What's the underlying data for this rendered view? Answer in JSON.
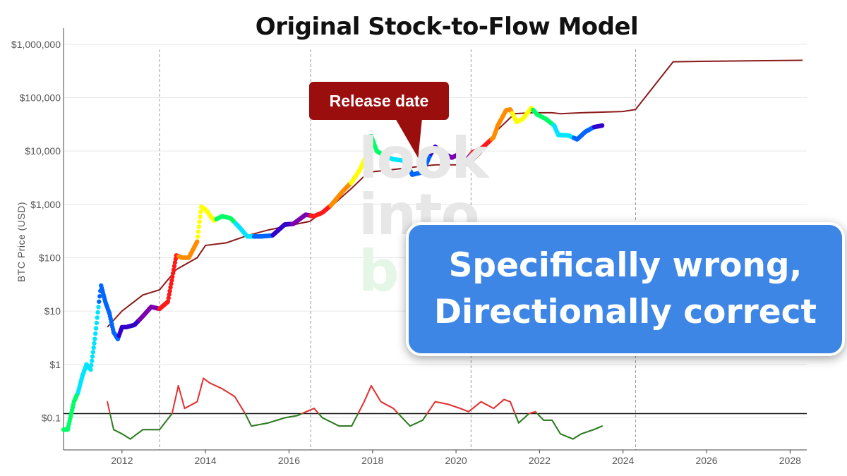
{
  "chart_data": {
    "type": "line",
    "title": "Original Stock-to-Flow Model",
    "ylabel": "BTC Price (USD)",
    "xlabel": "",
    "y_scale": "log",
    "x_ticks": [
      "2012",
      "2014",
      "2016",
      "2018",
      "2020",
      "2022",
      "2024",
      "2026",
      "2028"
    ],
    "y_ticks": [
      "$0.1",
      "$1",
      "$10",
      "$100",
      "$1,000",
      "$10,000",
      "$100,000",
      "$1,000,000"
    ],
    "xlim": [
      2010.6,
      2028.4
    ],
    "ylim": [
      0.025,
      2000000
    ],
    "grid": true,
    "halving_dates": [
      2012.9,
      2016.52,
      2020.36,
      2024.3
    ],
    "reference_line": {
      "value": 0.12
    },
    "series": [
      {
        "role": "price",
        "color_scale": [
          "#ff1a1a",
          "#ff8c00",
          "#ffff00",
          "#00ff66",
          "#00e5ff",
          "#0066ff",
          "#3300cc",
          "#7a00b0"
        ],
        "points": [
          [
            2010.6,
            0.06
          ],
          [
            2010.7,
            0.06
          ],
          [
            2010.85,
            0.2
          ],
          [
            2010.95,
            0.3
          ],
          [
            2011.05,
            0.6
          ],
          [
            2011.15,
            1
          ],
          [
            2011.25,
            0.8
          ],
          [
            2011.35,
            3
          ],
          [
            2011.45,
            15
          ],
          [
            2011.5,
            30
          ],
          [
            2011.6,
            15
          ],
          [
            2011.7,
            9
          ],
          [
            2011.8,
            4
          ],
          [
            2011.9,
            3
          ],
          [
            2012.0,
            5
          ],
          [
            2012.1,
            5
          ],
          [
            2012.3,
            5.5
          ],
          [
            2012.5,
            8
          ],
          [
            2012.7,
            12
          ],
          [
            2012.9,
            11
          ],
          [
            2013.1,
            15
          ],
          [
            2013.3,
            110
          ],
          [
            2013.45,
            100
          ],
          [
            2013.6,
            100
          ],
          [
            2013.8,
            200
          ],
          [
            2013.9,
            900
          ],
          [
            2014.0,
            800
          ],
          [
            2014.2,
            500
          ],
          [
            2014.4,
            600
          ],
          [
            2014.6,
            550
          ],
          [
            2014.8,
            380
          ],
          [
            2015.0,
            250
          ],
          [
            2015.3,
            250
          ],
          [
            2015.6,
            260
          ],
          [
            2015.9,
            420
          ],
          [
            2016.1,
            430
          ],
          [
            2016.4,
            640
          ],
          [
            2016.6,
            600
          ],
          [
            2016.8,
            700
          ],
          [
            2017.0,
            950
          ],
          [
            2017.3,
            1800
          ],
          [
            2017.5,
            2600
          ],
          [
            2017.7,
            4500
          ],
          [
            2017.9,
            10000
          ],
          [
            2017.97,
            19000
          ],
          [
            2018.1,
            10000
          ],
          [
            2018.3,
            8000
          ],
          [
            2018.5,
            7000
          ],
          [
            2018.8,
            6500
          ],
          [
            2018.95,
            3600
          ],
          [
            2019.2,
            4000
          ],
          [
            2019.4,
            9000
          ],
          [
            2019.5,
            12000
          ],
          [
            2019.7,
            9000
          ],
          [
            2019.9,
            7500
          ],
          [
            2020.1,
            9000
          ],
          [
            2020.2,
            6000
          ],
          [
            2020.4,
            9500
          ],
          [
            2020.6,
            11000
          ],
          [
            2020.9,
            18000
          ],
          [
            2021.0,
            30000
          ],
          [
            2021.2,
            58000
          ],
          [
            2021.3,
            60000
          ],
          [
            2021.45,
            35000
          ],
          [
            2021.6,
            40000
          ],
          [
            2021.8,
            64000
          ],
          [
            2021.95,
            48000
          ],
          [
            2022.15,
            40000
          ],
          [
            2022.35,
            30000
          ],
          [
            2022.45,
            20000
          ],
          [
            2022.7,
            19500
          ],
          [
            2022.9,
            16500
          ],
          [
            2023.1,
            23000
          ],
          [
            2023.3,
            28000
          ],
          [
            2023.5,
            30000
          ]
        ]
      },
      {
        "role": "model",
        "color": "#8b1a1a",
        "points": [
          [
            2011.65,
            5
          ],
          [
            2012.0,
            10
          ],
          [
            2012.5,
            20
          ],
          [
            2012.9,
            25
          ],
          [
            2013.3,
            60
          ],
          [
            2013.8,
            100
          ],
          [
            2014.0,
            170
          ],
          [
            2014.5,
            190
          ],
          [
            2015.0,
            260
          ],
          [
            2015.5,
            330
          ],
          [
            2016.0,
            400
          ],
          [
            2016.5,
            480
          ],
          [
            2016.6,
            550
          ],
          [
            2017.0,
            900
          ],
          [
            2017.5,
            2000
          ],
          [
            2017.9,
            4000
          ],
          [
            2018.5,
            4500
          ],
          [
            2019.0,
            5000
          ],
          [
            2019.5,
            5500
          ],
          [
            2020.3,
            5500
          ],
          [
            2020.6,
            9000
          ],
          [
            2021.0,
            25000
          ],
          [
            2021.4,
            50000
          ],
          [
            2021.8,
            52000
          ],
          [
            2022.3,
            52000
          ],
          [
            2022.5,
            50000
          ],
          [
            2023.0,
            52000
          ],
          [
            2024.0,
            55000
          ],
          [
            2024.3,
            60000
          ],
          [
            2025.2,
            470000
          ],
          [
            2026.0,
            480000
          ],
          [
            2027.0,
            490000
          ],
          [
            2028.3,
            500000
          ]
        ]
      },
      {
        "role": "ratio",
        "color_above": "#e03333",
        "color_below": "#2e7d22",
        "points": [
          [
            2011.65,
            0.2
          ],
          [
            2011.8,
            0.06
          ],
          [
            2012.0,
            0.05
          ],
          [
            2012.2,
            0.04
          ],
          [
            2012.5,
            0.06
          ],
          [
            2012.9,
            0.06
          ],
          [
            2013.2,
            0.12
          ],
          [
            2013.35,
            0.4
          ],
          [
            2013.5,
            0.15
          ],
          [
            2013.8,
            0.2
          ],
          [
            2013.95,
            0.55
          ],
          [
            2014.1,
            0.45
          ],
          [
            2014.4,
            0.35
          ],
          [
            2014.7,
            0.25
          ],
          [
            2014.95,
            0.12
          ],
          [
            2015.1,
            0.07
          ],
          [
            2015.5,
            0.08
          ],
          [
            2015.9,
            0.1
          ],
          [
            2016.2,
            0.11
          ],
          [
            2016.6,
            0.15
          ],
          [
            2016.8,
            0.1
          ],
          [
            2017.2,
            0.07
          ],
          [
            2017.5,
            0.07
          ],
          [
            2017.8,
            0.2
          ],
          [
            2017.97,
            0.4
          ],
          [
            2018.2,
            0.2
          ],
          [
            2018.5,
            0.15
          ],
          [
            2018.9,
            0.07
          ],
          [
            2019.2,
            0.09
          ],
          [
            2019.5,
            0.2
          ],
          [
            2019.8,
            0.18
          ],
          [
            2020.1,
            0.15
          ],
          [
            2020.3,
            0.13
          ],
          [
            2020.6,
            0.2
          ],
          [
            2020.9,
            0.15
          ],
          [
            2021.15,
            0.22
          ],
          [
            2021.3,
            0.2
          ],
          [
            2021.5,
            0.08
          ],
          [
            2021.75,
            0.12
          ],
          [
            2021.9,
            0.13
          ],
          [
            2022.1,
            0.09
          ],
          [
            2022.3,
            0.09
          ],
          [
            2022.5,
            0.05
          ],
          [
            2022.8,
            0.04
          ],
          [
            2023.0,
            0.05
          ],
          [
            2023.3,
            0.06
          ],
          [
            2023.5,
            0.07
          ]
        ]
      }
    ]
  },
  "annotation": {
    "label": "Release date",
    "color": "#9b0e0e"
  },
  "watermark": {
    "line1": "look",
    "line2": "into",
    "line3": "b"
  },
  "banner": {
    "line1": "Specifically wrong,",
    "line2": "Directionally correct",
    "color": "#3e86e6"
  }
}
